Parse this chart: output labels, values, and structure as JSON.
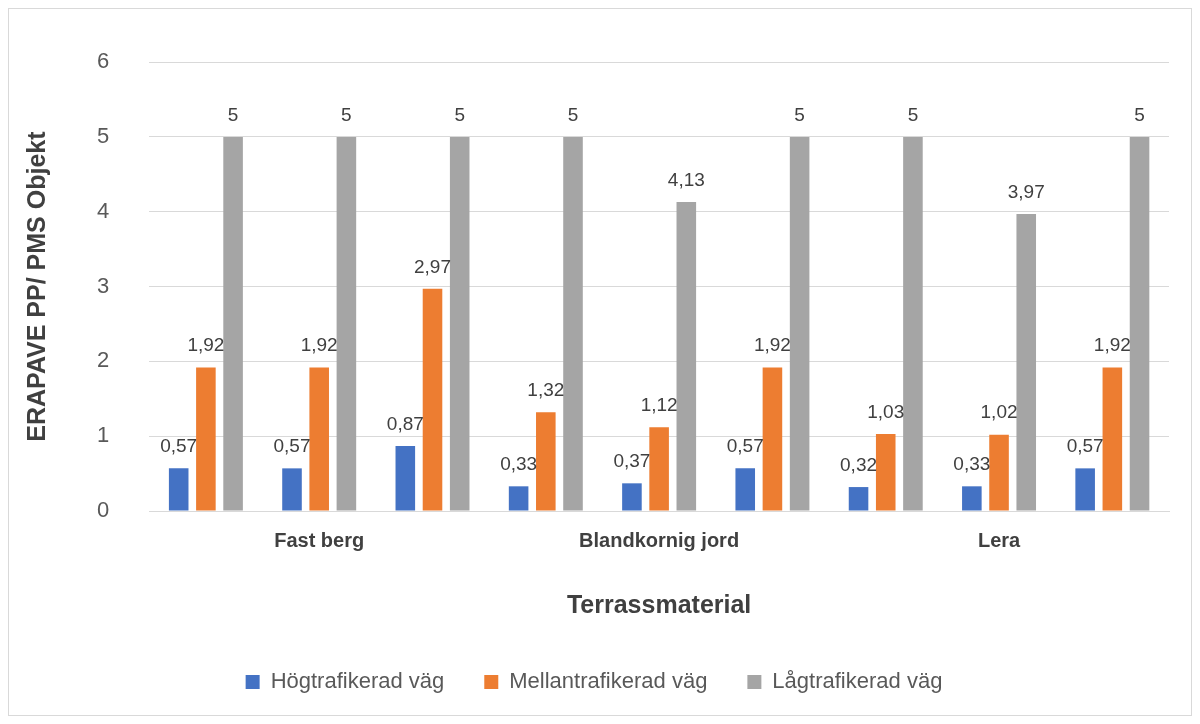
{
  "chart_data": {
    "type": "bar",
    "xlabel": "Terrassmaterial",
    "ylabel": "ERAPAVE PP/ PMS Objekt",
    "categories": [
      null,
      "Fast berg",
      null,
      null,
      "Blandkornig jord",
      null,
      null,
      "Lera",
      null
    ],
    "series": [
      {
        "name": "Högtrafikerad väg",
        "color": "#4472c4",
        "values": [
          0.57,
          0.57,
          0.87,
          0.33,
          0.37,
          0.57,
          0.32,
          0.33,
          0.57
        ],
        "value_labels": [
          "0,57",
          "0,57",
          "0,87",
          "0,33",
          "0,37",
          "0,57",
          "0,32",
          "0,33",
          "0,57"
        ]
      },
      {
        "name": "Mellantrafikerad väg",
        "color": "#ed7d31",
        "values": [
          1.92,
          1.92,
          2.97,
          1.32,
          1.12,
          1.92,
          1.03,
          1.02,
          1.92
        ],
        "value_labels": [
          "1,92",
          "1,92",
          "2,97",
          "1,32",
          "1,12",
          "1,92",
          "1,03",
          "1,02",
          "1,92"
        ]
      },
      {
        "name": "Lågtrafikerad väg",
        "color": "#a5a5a5",
        "values": [
          5,
          5,
          5,
          5,
          4.13,
          5,
          5,
          3.97,
          5
        ],
        "value_labels": [
          "5",
          "5",
          "5",
          "5",
          "4,13",
          "5",
          "5",
          "3,97",
          "5"
        ]
      }
    ],
    "ylim": [
      0,
      6
    ],
    "yticks": [
      0,
      1,
      2,
      3,
      4,
      5,
      6
    ],
    "grid": "y",
    "legend": "bottom"
  }
}
